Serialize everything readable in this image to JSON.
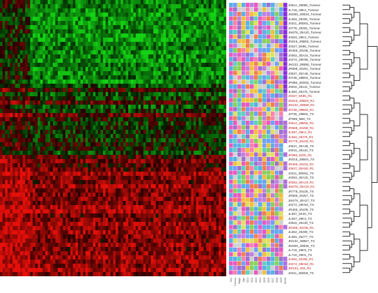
{
  "figure": {
    "type": "clustered expression heatmap with sample dendrogram",
    "colors": {
      "high_expression": "#e01010",
      "low_expression": "#10b020",
      "neutral": "#000000",
      "tumour_label": "#2a2a2a",
      "r1_label": "#c01818",
      "ts_label": "#303030",
      "group_bar_tumour": "#8a2be2",
      "group_bar_r1": "#ffffff",
      "dendrogram_line": "#000000"
    },
    "annotation_palette": [
      "#e85ac0",
      "#f0c040",
      "#5ab0e8",
      "#8ad05a",
      "#c080e0",
      "#f08050",
      "#60d0c0",
      "#e0e060",
      "#a070d0",
      "#ff80b0",
      "#70a0ff",
      "#d0d0d0"
    ],
    "rows": [
      {
        "label": "J0612_29856_Tumeur",
        "group": "Tumeur"
      },
      {
        "label": "JL718_29K4_Tumeur",
        "group": "Tumeur"
      },
      {
        "label": "JM269_29B33_Tumeur",
        "group": "Tumeur"
      },
      {
        "label": "JL664_29J90_Tumeur",
        "group": "Tumeur"
      },
      {
        "label": "J0311_38D63_Tumeur",
        "group": "Tumeur"
      },
      {
        "label": "J0778_29J52_Tumeur",
        "group": "Tumeur"
      },
      {
        "label": "JM478_29A20_Tumeur",
        "group": "Tumeur"
      },
      {
        "label": "J0263_29K3_Tumeur",
        "group": "Tumeur"
      },
      {
        "label": "JN015_29B03_Tumeur",
        "group": "Tumeur"
      },
      {
        "label": "J0327_5K85_Tumeur",
        "group": "Tumeur"
      },
      {
        "label": "JR466_29J36_Tumeur",
        "group": "Tumeur"
      },
      {
        "label": "J0363_30A24_Tumeur",
        "group": "Tumeur"
      },
      {
        "label": "J0274_29H55_Tumeur",
        "group": "Tumeur"
      },
      {
        "label": "JM133_29B58_Tumeur",
        "group": "Tumeur"
      },
      {
        "label": "JR588_29J61_Tumeur",
        "group": "Tumeur"
      },
      {
        "label": "J0637_30A46_Tumeur",
        "group": "Tumeur"
      },
      {
        "label": "J0736_29B64_Tumeur",
        "group": "Tumeur"
      },
      {
        "label": "JP896_29G83_Tumeur",
        "group": "Tumeur"
      },
      {
        "label": "J0915_29141_Tumeur",
        "group": "Tumeur"
      },
      {
        "label": "JL584_29J75_Tumeur",
        "group": "Tumeur"
      },
      {
        "label": "J0327_5K85_R1",
        "group": "R1"
      },
      {
        "label": "JN015_29B03_R1",
        "group": "R1"
      },
      {
        "label": "JM133_29B58_R1",
        "group": "R1"
      },
      {
        "label": "J0736_29B63_R1",
        "group": "R1"
      },
      {
        "label": "J0736_29B62_TS",
        "group": "TS"
      },
      {
        "label": "JP896_5B8_TS",
        "group": "TS"
      },
      {
        "label": "J0612_29B56_R1",
        "group": "R1"
      },
      {
        "label": "JR588_29J59_R1",
        "group": "R1"
      },
      {
        "label": "JL697_29K2_R1",
        "group": "R1"
      },
      {
        "label": "JL584_29J76_R1",
        "group": "R1"
      },
      {
        "label": "JR778_29J26_R1",
        "group": "R1"
      },
      {
        "label": "J0637_30A48_TS",
        "group": "TS"
      },
      {
        "label": "J0915_29140_TS",
        "group": "TS"
      },
      {
        "label": "JP896_5J00_R1",
        "group": "R1"
      },
      {
        "label": "JN015_29B04_TS",
        "group": "TS"
      },
      {
        "label": "JR466_29J34_R1",
        "group": "R1"
      },
      {
        "label": "J0637_30A50_R1",
        "group": "R1"
      },
      {
        "label": "J0311_38D62_TS",
        "group": "TS"
      },
      {
        "label": "J0363_30A22_TS",
        "group": "TS"
      },
      {
        "label": "J0363_30A23_R1",
        "group": "R1"
      },
      {
        "label": "JM478_29A20_R1",
        "group": "R1"
      },
      {
        "label": "JR778_29J25_TS",
        "group": "TS"
      },
      {
        "label": "JR588_29J57_TS",
        "group": "TS"
      },
      {
        "label": "JM478_29A27_TS",
        "group": "TS"
      },
      {
        "label": "J0274_29H53_TS",
        "group": "TS"
      },
      {
        "label": "JR466_29J35_TS",
        "group": "TS"
      },
      {
        "label": "JL697_5K20_TS",
        "group": "TS"
      },
      {
        "label": "JL697_29K3_TS",
        "group": "TS"
      },
      {
        "label": "J0915_29139_TS",
        "group": "TS"
      },
      {
        "label": "JR466_29J36_R1",
        "group": "R1"
      },
      {
        "label": "JL664_29J89_TS",
        "group": "TS"
      },
      {
        "label": "JL584_29J77_TS",
        "group": "TS"
      },
      {
        "label": "JM133_29B57_TS",
        "group": "TS"
      },
      {
        "label": "JM269_29B35_TS",
        "group": "TS"
      },
      {
        "label": "JL718_29K6_TS",
        "group": "TS"
      },
      {
        "label": "JL718_29K5_TS",
        "group": "TS"
      },
      {
        "label": "JL664_40J65_R1",
        "group": "R1"
      },
      {
        "label": "J0274_29H54_R1",
        "group": "R1"
      },
      {
        "label": "JM133_4S5_R1",
        "group": "R1"
      },
      {
        "label": "J0311_38D58_TS",
        "group": "TS"
      }
    ],
    "column_labels": [
      "Sex",
      "Tumour",
      "Stage",
      "Age",
      "CD1",
      "CD2",
      "CD3",
      "CD4",
      "CD5",
      "CD6",
      "CD7",
      "CD8",
      "CD9",
      "CD10"
    ]
  }
}
